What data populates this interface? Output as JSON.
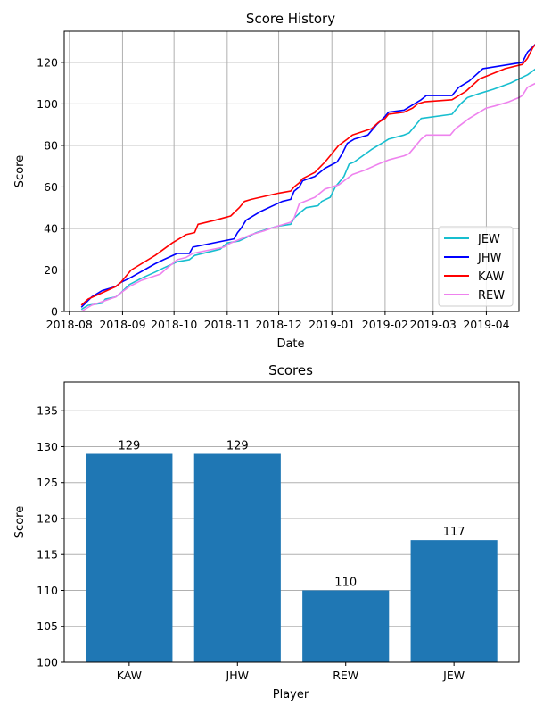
{
  "charts": {
    "history": {
      "title": "Score History",
      "xlabel": "Date",
      "ylabel": "Score"
    },
    "scores": {
      "title": "Scores",
      "xlabel": "Player",
      "ylabel": "Score"
    }
  },
  "chart_data": [
    {
      "type": "line",
      "title": "Score History",
      "xlabel": "Date",
      "ylabel": "Score",
      "x_ticks": [
        "2018-08",
        "2018-09",
        "2018-10",
        "2018-11",
        "2018-12",
        "2019-01",
        "2019-02",
        "2019-03",
        "2019-04"
      ],
      "y_ticks": [
        0,
        20,
        40,
        60,
        80,
        100,
        120
      ],
      "xlim": [
        "2018-07-29",
        "2019-04-20"
      ],
      "ylim": [
        0,
        135
      ],
      "grid": true,
      "legend_position": "bottom-right",
      "series": [
        {
          "name": "JEW",
          "color": "#17becf",
          "points": [
            [
              "2018-08-08",
              1
            ],
            [
              "2018-08-12",
              3
            ],
            [
              "2018-08-20",
              4
            ],
            [
              "2018-08-22",
              6
            ],
            [
              "2018-08-28",
              7
            ],
            [
              "2018-08-31",
              9
            ],
            [
              "2018-09-05",
              13
            ],
            [
              "2018-09-12",
              16
            ],
            [
              "2018-09-20",
              19
            ],
            [
              "2018-09-25",
              21
            ],
            [
              "2018-10-03",
              24
            ],
            [
              "2018-10-10",
              25
            ],
            [
              "2018-10-13",
              27
            ],
            [
              "2018-10-28",
              30
            ],
            [
              "2018-11-01",
              33
            ],
            [
              "2018-11-08",
              34
            ],
            [
              "2018-11-18",
              38
            ],
            [
              "2018-11-30",
              41
            ],
            [
              "2018-12-08",
              42
            ],
            [
              "2018-12-10",
              45
            ],
            [
              "2018-12-14",
              48
            ],
            [
              "2018-12-17",
              50
            ],
            [
              "2018-12-24",
              51
            ],
            [
              "2018-12-26",
              53
            ],
            [
              "2018-12-31",
              55
            ],
            [
              "2019-01-03",
              60
            ],
            [
              "2019-01-08",
              65
            ],
            [
              "2019-01-11",
              71
            ],
            [
              "2019-01-14",
              72
            ],
            [
              "2019-01-24",
              78
            ],
            [
              "2019-01-28",
              80
            ],
            [
              "2019-02-01",
              82
            ],
            [
              "2019-02-03",
              83
            ],
            [
              "2019-02-12",
              85
            ],
            [
              "2019-02-15",
              86
            ],
            [
              "2019-02-22",
              93
            ],
            [
              "2019-03-12",
              95
            ],
            [
              "2019-03-17",
              100
            ],
            [
              "2019-03-21",
              103
            ],
            [
              "2019-03-28",
              105
            ],
            [
              "2019-04-05",
              107
            ],
            [
              "2019-04-15",
              110
            ],
            [
              "2019-04-25",
              114
            ],
            [
              "2019-04-30",
              117
            ]
          ]
        },
        {
          "name": "JHW",
          "color": "#0000ff",
          "points": [
            [
              "2018-08-08",
              2
            ],
            [
              "2018-08-14",
              7
            ],
            [
              "2018-08-20",
              10
            ],
            [
              "2018-08-28",
              12
            ],
            [
              "2018-08-31",
              14
            ],
            [
              "2018-09-05",
              16
            ],
            [
              "2018-09-20",
              23
            ],
            [
              "2018-09-25",
              25
            ],
            [
              "2018-10-03",
              28
            ],
            [
              "2018-10-10",
              28
            ],
            [
              "2018-10-12",
              31
            ],
            [
              "2018-11-05",
              35
            ],
            [
              "2018-11-07",
              38
            ],
            [
              "2018-11-09",
              40
            ],
            [
              "2018-11-12",
              44
            ],
            [
              "2018-11-20",
              48
            ],
            [
              "2018-12-03",
              53
            ],
            [
              "2018-12-08",
              54
            ],
            [
              "2018-12-10",
              58
            ],
            [
              "2018-12-13",
              60
            ],
            [
              "2018-12-15",
              63
            ],
            [
              "2018-12-22",
              65
            ],
            [
              "2018-12-28",
              69
            ],
            [
              "2019-01-04",
              72
            ],
            [
              "2019-01-07",
              76
            ],
            [
              "2019-01-10",
              81
            ],
            [
              "2019-01-14",
              83
            ],
            [
              "2019-01-22",
              85
            ],
            [
              "2019-01-27",
              90
            ],
            [
              "2019-02-01",
              94
            ],
            [
              "2019-02-03",
              96
            ],
            [
              "2019-02-12",
              97
            ],
            [
              "2019-02-18",
              100
            ],
            [
              "2019-02-22",
              102
            ],
            [
              "2019-02-25",
              104
            ],
            [
              "2019-03-12",
              104
            ],
            [
              "2019-03-16",
              108
            ],
            [
              "2019-03-22",
              111
            ],
            [
              "2019-03-26",
              114
            ],
            [
              "2019-03-30",
              117
            ],
            [
              "2019-04-22",
              120
            ],
            [
              "2019-04-25",
              125
            ],
            [
              "2019-04-30",
              129
            ]
          ]
        },
        {
          "name": "KAW",
          "color": "#ff0000",
          "points": [
            [
              "2018-08-08",
              3
            ],
            [
              "2018-08-12",
              6
            ],
            [
              "2018-08-20",
              9
            ],
            [
              "2018-08-28",
              12
            ],
            [
              "2018-08-31",
              14
            ],
            [
              "2018-09-06",
              20
            ],
            [
              "2018-09-20",
              27
            ],
            [
              "2018-09-30",
              33
            ],
            [
              "2018-10-08",
              37
            ],
            [
              "2018-10-13",
              38
            ],
            [
              "2018-10-15",
              42
            ],
            [
              "2018-10-25",
              44
            ],
            [
              "2018-11-03",
              46
            ],
            [
              "2018-11-08",
              50
            ],
            [
              "2018-11-11",
              53
            ],
            [
              "2018-11-15",
              54
            ],
            [
              "2018-12-01",
              57
            ],
            [
              "2018-12-08",
              58
            ],
            [
              "2018-12-10",
              60
            ],
            [
              "2018-12-13",
              62
            ],
            [
              "2018-12-15",
              64
            ],
            [
              "2018-12-22",
              67
            ],
            [
              "2018-12-28",
              72
            ],
            [
              "2019-01-01",
              76
            ],
            [
              "2019-01-05",
              80
            ],
            [
              "2019-01-10",
              83
            ],
            [
              "2019-01-13",
              85
            ],
            [
              "2019-01-24",
              88
            ],
            [
              "2019-01-28",
              91
            ],
            [
              "2019-02-01",
              93
            ],
            [
              "2019-02-03",
              95
            ],
            [
              "2019-02-12",
              96
            ],
            [
              "2019-02-17",
              98
            ],
            [
              "2019-02-20",
              100
            ],
            [
              "2019-02-24",
              101
            ],
            [
              "2019-03-12",
              102
            ],
            [
              "2019-03-16",
              104
            ],
            [
              "2019-03-20",
              106
            ],
            [
              "2019-03-24",
              109
            ],
            [
              "2019-03-28",
              112
            ],
            [
              "2019-04-12",
              117
            ],
            [
              "2019-04-22",
              119
            ],
            [
              "2019-04-25",
              122
            ],
            [
              "2019-04-28",
              127
            ],
            [
              "2019-04-30",
              129
            ]
          ]
        },
        {
          "name": "REW",
          "color": "#ee82ee",
          "points": [
            [
              "2018-08-08",
              0
            ],
            [
              "2018-08-14",
              3
            ],
            [
              "2018-08-21",
              5
            ],
            [
              "2018-08-28",
              7
            ],
            [
              "2018-08-31",
              9
            ],
            [
              "2018-09-05",
              12
            ],
            [
              "2018-09-12",
              15
            ],
            [
              "2018-09-23",
              18
            ],
            [
              "2018-09-27",
              21
            ],
            [
              "2018-10-03",
              25
            ],
            [
              "2018-10-08",
              26
            ],
            [
              "2018-10-12",
              28
            ],
            [
              "2018-10-30",
              31
            ],
            [
              "2018-11-03",
              33
            ],
            [
              "2018-11-15",
              37
            ],
            [
              "2018-11-23",
              39
            ],
            [
              "2018-11-30",
              41
            ],
            [
              "2018-12-08",
              43
            ],
            [
              "2018-12-10",
              45
            ],
            [
              "2018-12-13",
              52
            ],
            [
              "2018-12-22",
              55
            ],
            [
              "2018-12-28",
              59
            ],
            [
              "2019-01-05",
              61
            ],
            [
              "2019-01-13",
              66
            ],
            [
              "2019-01-20",
              68
            ],
            [
              "2019-01-28",
              71
            ],
            [
              "2019-02-03",
              73
            ],
            [
              "2019-02-12",
              75
            ],
            [
              "2019-02-15",
              76
            ],
            [
              "2019-02-18",
              79
            ],
            [
              "2019-02-22",
              83
            ],
            [
              "2019-02-25",
              85
            ],
            [
              "2019-03-11",
              85
            ],
            [
              "2019-03-14",
              88
            ],
            [
              "2019-03-22",
              93
            ],
            [
              "2019-03-28",
              96
            ],
            [
              "2019-04-01",
              98
            ],
            [
              "2019-04-06",
              99
            ],
            [
              "2019-04-14",
              101
            ],
            [
              "2019-04-20",
              103
            ],
            [
              "2019-04-22",
              104
            ],
            [
              "2019-04-25",
              108
            ],
            [
              "2019-04-30",
              110
            ]
          ]
        }
      ]
    },
    {
      "type": "bar",
      "title": "Scores",
      "xlabel": "Player",
      "ylabel": "Score",
      "categories": [
        "KAW",
        "JHW",
        "REW",
        "JEW"
      ],
      "values": [
        129,
        129,
        110,
        117
      ],
      "data_labels": [
        "129",
        "129",
        "110",
        "117"
      ],
      "y_ticks": [
        100,
        105,
        110,
        115,
        120,
        125,
        130,
        135
      ],
      "ylim": [
        100,
        139
      ],
      "grid": true,
      "bar_color": "#1f77b4"
    }
  ]
}
